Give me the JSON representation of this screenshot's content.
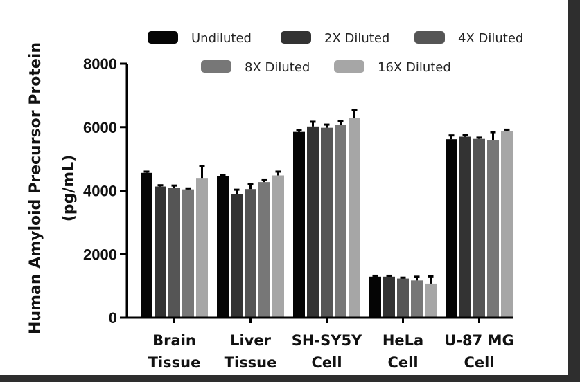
{
  "chart_data": {
    "type": "bar",
    "title": "",
    "xlabel": "",
    "ylabel": "Human Amyloid Precursor Protein",
    "ylabel_unit": "(pg/mL)",
    "ylim": [
      0,
      8000
    ],
    "yticks": [
      "0",
      "2000",
      "4000",
      "6000",
      "8000"
    ],
    "ytick_values": [
      0,
      2000,
      4000,
      6000,
      8000
    ],
    "legend_position": "top",
    "categories": [
      [
        "Brain",
        "Tissue"
      ],
      [
        "Liver",
        "Tissue"
      ],
      [
        "SH-SY5Y",
        "Cell"
      ],
      [
        "HeLa",
        "Cell"
      ],
      [
        "U-87 MG",
        "Cell"
      ]
    ],
    "series": [
      {
        "name": "Undiluted",
        "color": "#050505",
        "values": [
          4560,
          4450,
          5850,
          1290,
          5620
        ],
        "errors": [
          40,
          50,
          60,
          30,
          120
        ]
      },
      {
        "name": "2X Diluted",
        "color": "#333333",
        "values": [
          4130,
          3900,
          6020,
          1290,
          5700
        ],
        "errors": [
          40,
          130,
          150,
          30,
          60
        ]
      },
      {
        "name": "4X Diluted",
        "color": "#555555",
        "values": [
          4080,
          4050,
          5980,
          1230,
          5630
        ],
        "errors": [
          80,
          160,
          100,
          30,
          40
        ]
      },
      {
        "name": "8X Diluted",
        "color": "#777777",
        "values": [
          4040,
          4270,
          6080,
          1170,
          5580
        ],
        "errors": [
          30,
          80,
          120,
          120,
          260
        ]
      },
      {
        "name": "16X Diluted",
        "color": "#a6a6a6",
        "values": [
          4400,
          4480,
          6300,
          1070,
          5880
        ],
        "errors": [
          380,
          120,
          250,
          230,
          40
        ]
      }
    ]
  }
}
